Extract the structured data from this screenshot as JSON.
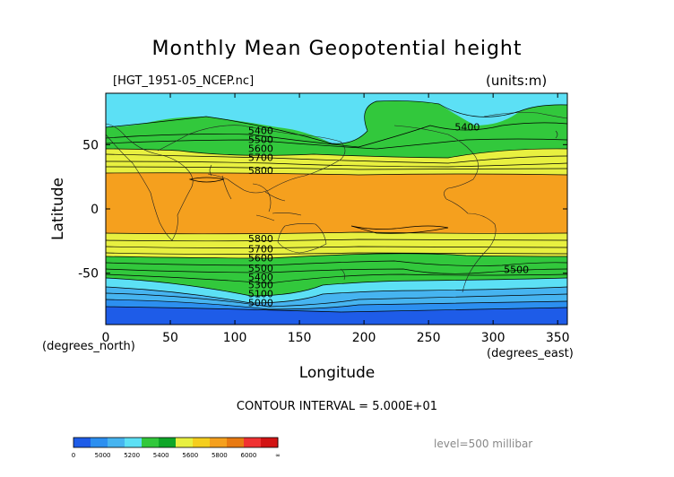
{
  "chart_data": {
    "type": "heatmap",
    "title": "Monthly Mean Geopotential height",
    "source_file": "[HGT_1951-05_NCEP.nc]",
    "units": "(units:m)",
    "xlabel": "Longitude",
    "ylabel": "Latitude",
    "x_unit_label": "(degrees_east)",
    "y_unit_label": "(degrees_north)",
    "xlim": [
      0,
      357.5
    ],
    "ylim": [
      -90,
      90
    ],
    "x_ticks": [
      0,
      50,
      100,
      150,
      200,
      250,
      300,
      350
    ],
    "y_ticks": [
      50,
      0,
      -50
    ],
    "contour_interval": "CONTOUR INTERVAL = 5.000E+01",
    "level": "level=500 millibar",
    "contour_labels": [
      {
        "text": "5400",
        "lon": 120,
        "lat": 61
      },
      {
        "text": "5500",
        "lon": 120,
        "lat": 54
      },
      {
        "text": "5600",
        "lon": 120,
        "lat": 47
      },
      {
        "text": "5700",
        "lon": 120,
        "lat": 40
      },
      {
        "text": "5800",
        "lon": 120,
        "lat": 30
      },
      {
        "text": "5400",
        "lon": 280,
        "lat": 64
      },
      {
        "text": "5800",
        "lon": 120,
        "lat": -23
      },
      {
        "text": "5700",
        "lon": 120,
        "lat": -31
      },
      {
        "text": "5600",
        "lon": 120,
        "lat": -38
      },
      {
        "text": "5500",
        "lon": 120,
        "lat": -46
      },
      {
        "text": "5400",
        "lon": 120,
        "lat": -53
      },
      {
        "text": "5300",
        "lon": 120,
        "lat": -59
      },
      {
        "text": "5100",
        "lon": 120,
        "lat": -66
      },
      {
        "text": "5000",
        "lon": 120,
        "lat": -73
      },
      {
        "text": "5500",
        "lon": 318,
        "lat": -47
      }
    ],
    "colorbar": {
      "labels": [
        "0",
        "5000",
        "5200",
        "5400",
        "5600",
        "5800",
        "6000",
        "∞"
      ],
      "colors": [
        "#1e5ce8",
        "#2c8ff0",
        "#46b4f0",
        "#5ce0f5",
        "#32c83c",
        "#0fa628",
        "#e8f040",
        "#f5ce1e",
        "#f5a01e",
        "#e87a12",
        "#f03232",
        "#d21414"
      ]
    }
  }
}
